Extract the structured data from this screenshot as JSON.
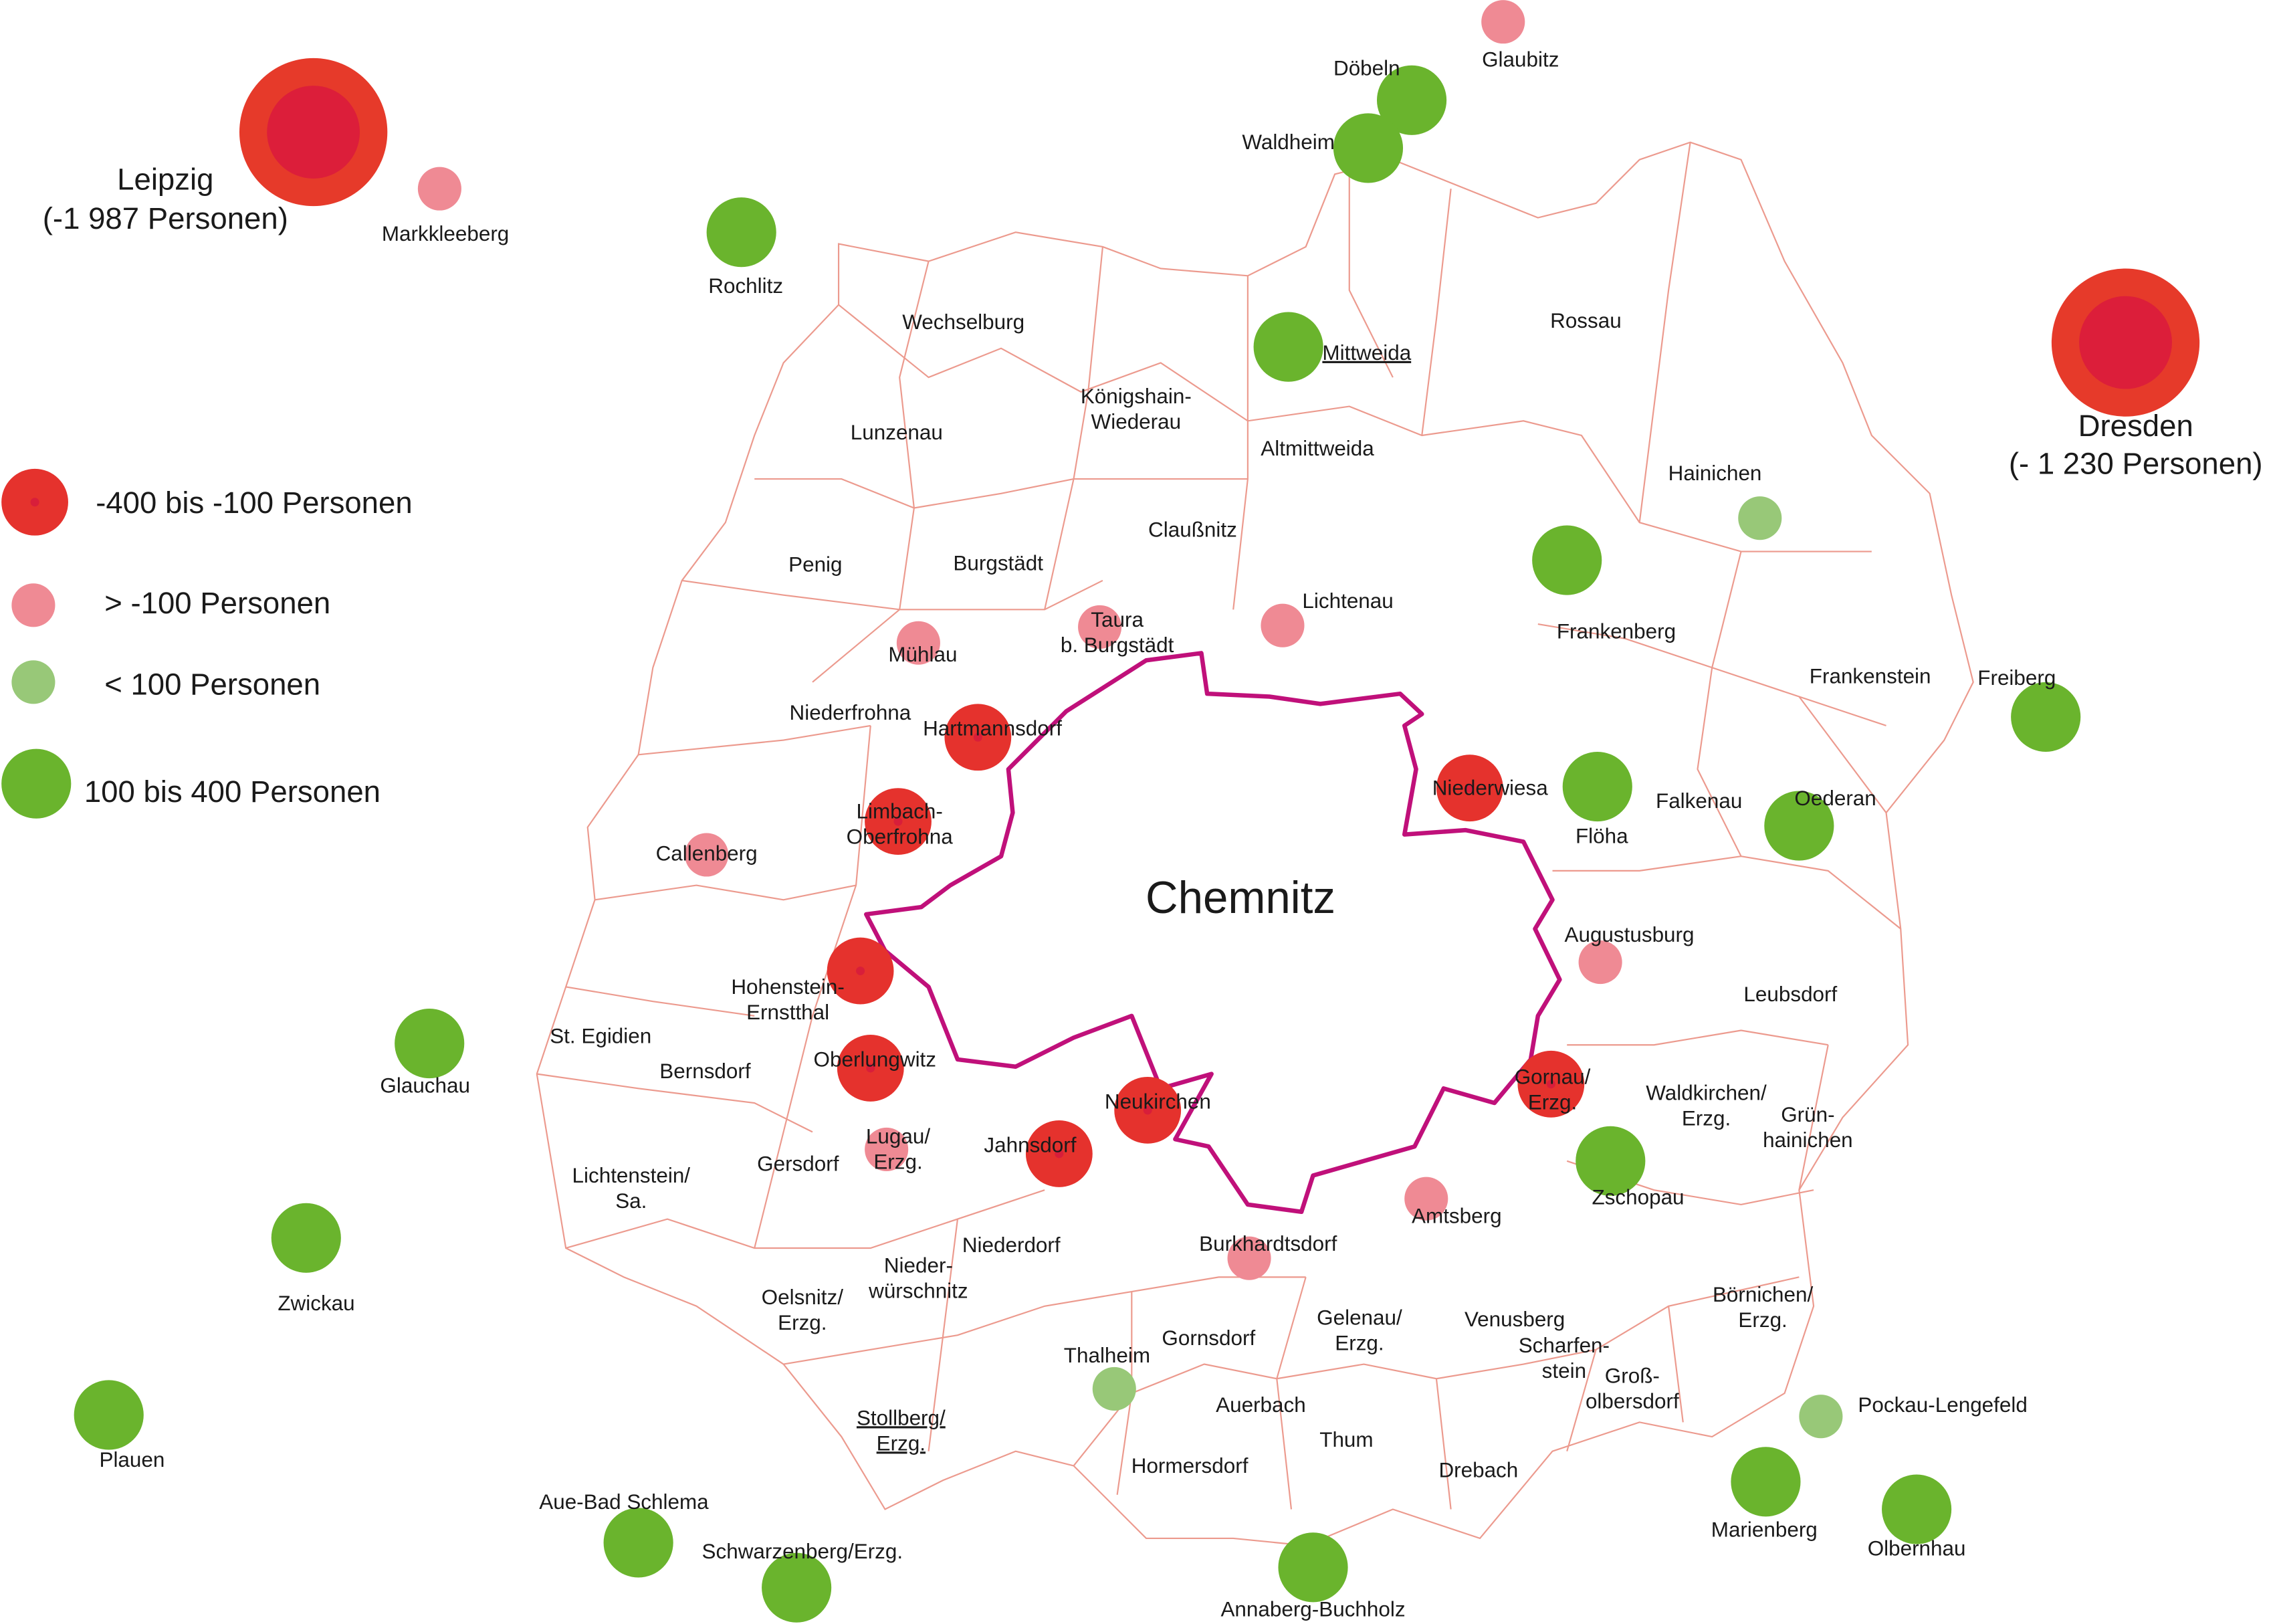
{
  "legend": [
    {
      "label": "-400 bis -100 Personen",
      "color": "#e5322d"
    },
    {
      "label": "> -100 Personen",
      "color": "#ef8a94"
    },
    {
      "label": "< 100 Personen",
      "color": "#98c878"
    },
    {
      "label": "100 bis 400 Personen",
      "color": "#6ab42d"
    }
  ],
  "cities": [
    {
      "name": "Leipzig",
      "note": "(-1 987 Personen)"
    },
    {
      "name": "Dresden",
      "note": "(- 1 230 Personen)"
    }
  ],
  "center": "Chemnitz",
  "places": [
    [
      "Döbeln"
    ],
    [
      "Glaubitz"
    ],
    [
      "Waldheim"
    ],
    [
      "Markkleeberg"
    ],
    [
      "Rochlitz"
    ],
    [
      "Wechselburg"
    ],
    [
      "Mittweida"
    ],
    [
      "Rossau"
    ],
    [
      "Königshain-",
      "Wiederau"
    ],
    [
      "Lunzenau"
    ],
    [
      "Altmittweida"
    ],
    [
      "Hainichen"
    ],
    [
      "Claußnitz"
    ],
    [
      "Penig"
    ],
    [
      "Burgstädt"
    ],
    [
      "Lichtenau"
    ],
    [
      "Taura",
      "b. Burgstädt"
    ],
    [
      "Mühlau"
    ],
    [
      "Frankenberg"
    ],
    [
      "Frankenstein"
    ],
    [
      "Freiberg"
    ],
    [
      "Niederfrohna"
    ],
    [
      "Hartmannsdorf"
    ],
    [
      "Niederwiesa"
    ],
    [
      "Limbach-",
      "Oberfrohna"
    ],
    [
      "Flöha"
    ],
    [
      "Falkenau"
    ],
    [
      "Oederan"
    ],
    [
      "Callenberg"
    ],
    [
      "Augustusburg"
    ],
    [
      "Leubsdorf"
    ],
    [
      "Hohenstein-",
      "Ernstthal"
    ],
    [
      "St. Egidien"
    ],
    [
      "Bernsdorf"
    ],
    [
      "Oberlungwitz"
    ],
    [
      "Glauchau"
    ],
    [
      "Neukirchen"
    ],
    [
      "Gornau/",
      "Erzg."
    ],
    [
      "Waldkirchen/",
      "Erzg."
    ],
    [
      "Grün-",
      "hainichen"
    ],
    [
      "Jahnsdorf"
    ],
    [
      "Lugau/",
      "Erzg."
    ],
    [
      "Gersdorf"
    ],
    [
      "Lichtenstein/",
      "Sa."
    ],
    [
      "Amtsberg"
    ],
    [
      "Zschopau"
    ],
    [
      "Burkhardtsdorf"
    ],
    [
      "Niederdorf"
    ],
    [
      "Nieder-",
      "würschnitz"
    ],
    [
      "Börnichen/",
      "Erzg."
    ],
    [
      "Zwickau"
    ],
    [
      "Oelsnitz/",
      "Erzg."
    ],
    [
      "Venusberg"
    ],
    [
      "Gelenau/",
      "Erzg."
    ],
    [
      "Gornsdorf"
    ],
    [
      "Scharfen-",
      "stein"
    ],
    [
      "Thalheim"
    ],
    [
      "Groß-",
      "olbersdorf"
    ],
    [
      "Auerbach"
    ],
    [
      "Pockau-Lengefeld"
    ],
    [
      "Stollberg/",
      "Erzg."
    ],
    [
      "Thum"
    ],
    [
      "Plauen"
    ],
    [
      "Hormersdorf"
    ],
    [
      "Drebach"
    ],
    [
      "Aue-Bad Schlema"
    ],
    [
      "Marienberg"
    ],
    [
      "Olbernhau"
    ],
    [
      "Schwarzenberg/Erzg."
    ],
    [
      "Annaberg-Buchholz"
    ]
  ]
}
